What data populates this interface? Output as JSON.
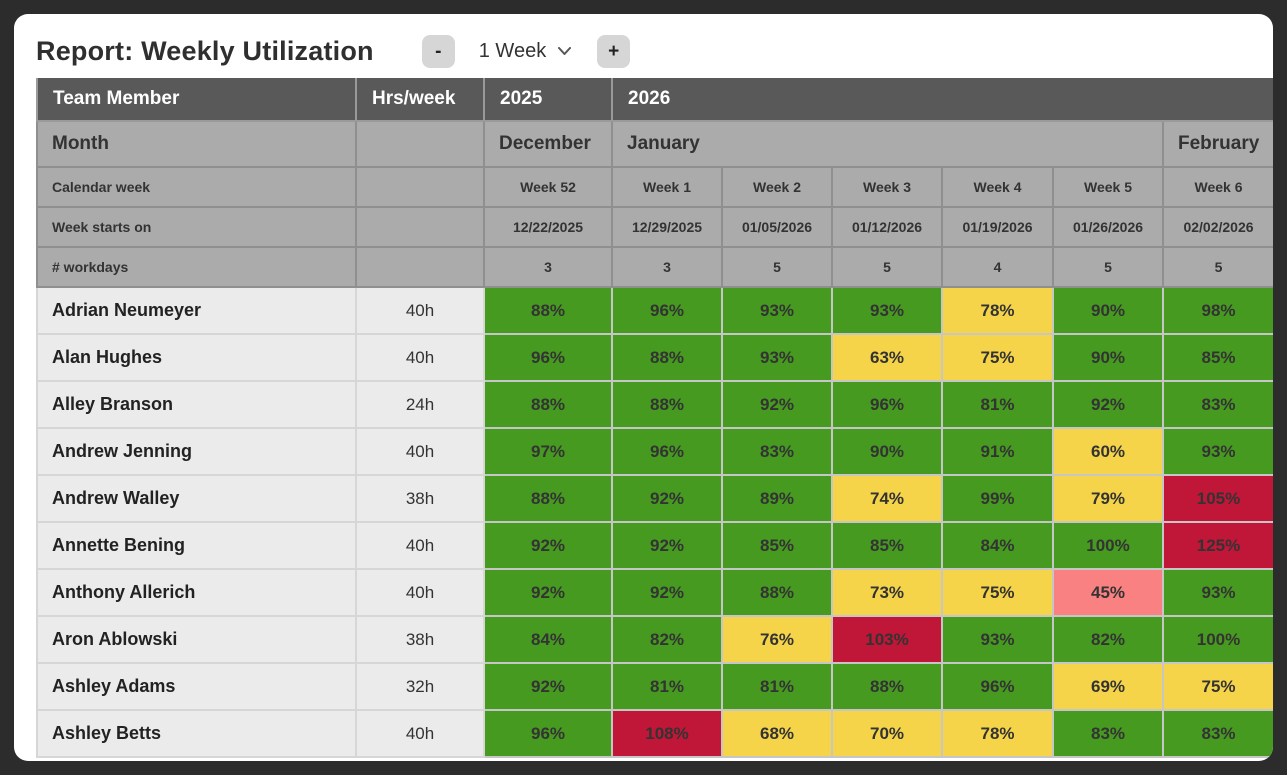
{
  "header": {
    "title": "Report: Weekly Utilization",
    "decrease_label": "-",
    "increase_label": "+",
    "interval_value": "1 Week"
  },
  "colors": {
    "green": "#469a20",
    "yellow": "#f6d44a",
    "red": "#c01637",
    "salmon": "#f98181",
    "header_dark": "#595959",
    "header_gray": "#ababab",
    "name_cell": "#ebebeb",
    "page_background": "#2c2c2c"
  },
  "table": {
    "year_row": {
      "team_member": "Team Member",
      "hrs_week": "Hrs/week",
      "year_2025": "2025",
      "year_2026": "2026"
    },
    "month_row": {
      "label": "Month",
      "months": [
        {
          "name": "December",
          "span": 1
        },
        {
          "name": "January",
          "span": 5
        },
        {
          "name": "February",
          "span": 1
        }
      ]
    },
    "calendar_week_row": {
      "label": "Calendar week",
      "weeks": [
        "Week 52",
        "Week 1",
        "Week 2",
        "Week 3",
        "Week 4",
        "Week 5",
        "Week 6"
      ]
    },
    "week_starts_row": {
      "label": "Week starts on",
      "dates": [
        "12/22/2025",
        "12/29/2025",
        "01/05/2026",
        "01/12/2026",
        "01/19/2026",
        "01/26/2026",
        "02/02/2026"
      ]
    },
    "workdays_row": {
      "label": "# workdays",
      "values": [
        "3",
        "3",
        "5",
        "5",
        "4",
        "5",
        "5"
      ]
    },
    "members": [
      {
        "name": "Adrian Neumeyer",
        "hours": "40h",
        "utilization": [
          {
            "value": "88%",
            "status": "green"
          },
          {
            "value": "96%",
            "status": "green"
          },
          {
            "value": "93%",
            "status": "green"
          },
          {
            "value": "93%",
            "status": "green"
          },
          {
            "value": "78%",
            "status": "yellow"
          },
          {
            "value": "90%",
            "status": "green"
          },
          {
            "value": "98%",
            "status": "green"
          }
        ]
      },
      {
        "name": "Alan Hughes",
        "hours": "40h",
        "utilization": [
          {
            "value": "96%",
            "status": "green"
          },
          {
            "value": "88%",
            "status": "green"
          },
          {
            "value": "93%",
            "status": "green"
          },
          {
            "value": "63%",
            "status": "yellow"
          },
          {
            "value": "75%",
            "status": "yellow"
          },
          {
            "value": "90%",
            "status": "green"
          },
          {
            "value": "85%",
            "status": "green"
          }
        ]
      },
      {
        "name": "Alley Branson",
        "hours": "24h",
        "utilization": [
          {
            "value": "88%",
            "status": "green"
          },
          {
            "value": "88%",
            "status": "green"
          },
          {
            "value": "92%",
            "status": "green"
          },
          {
            "value": "96%",
            "status": "green"
          },
          {
            "value": "81%",
            "status": "green"
          },
          {
            "value": "92%",
            "status": "green"
          },
          {
            "value": "83%",
            "status": "green"
          }
        ]
      },
      {
        "name": "Andrew Jenning",
        "hours": "40h",
        "utilization": [
          {
            "value": "97%",
            "status": "green"
          },
          {
            "value": "96%",
            "status": "green"
          },
          {
            "value": "83%",
            "status": "green"
          },
          {
            "value": "90%",
            "status": "green"
          },
          {
            "value": "91%",
            "status": "green"
          },
          {
            "value": "60%",
            "status": "yellow"
          },
          {
            "value": "93%",
            "status": "green"
          }
        ]
      },
      {
        "name": "Andrew Walley",
        "hours": "38h",
        "utilization": [
          {
            "value": "88%",
            "status": "green"
          },
          {
            "value": "92%",
            "status": "green"
          },
          {
            "value": "89%",
            "status": "green"
          },
          {
            "value": "74%",
            "status": "yellow"
          },
          {
            "value": "99%",
            "status": "green"
          },
          {
            "value": "79%",
            "status": "yellow"
          },
          {
            "value": "105%",
            "status": "red"
          }
        ]
      },
      {
        "name": "Annette Bening",
        "hours": "40h",
        "utilization": [
          {
            "value": "92%",
            "status": "green"
          },
          {
            "value": "92%",
            "status": "green"
          },
          {
            "value": "85%",
            "status": "green"
          },
          {
            "value": "85%",
            "status": "green"
          },
          {
            "value": "84%",
            "status": "green"
          },
          {
            "value": "100%",
            "status": "green"
          },
          {
            "value": "125%",
            "status": "red"
          }
        ]
      },
      {
        "name": "Anthony Allerich",
        "hours": "40h",
        "utilization": [
          {
            "value": "92%",
            "status": "green"
          },
          {
            "value": "92%",
            "status": "green"
          },
          {
            "value": "88%",
            "status": "green"
          },
          {
            "value": "73%",
            "status": "yellow"
          },
          {
            "value": "75%",
            "status": "yellow"
          },
          {
            "value": "45%",
            "status": "salmon"
          },
          {
            "value": "93%",
            "status": "green"
          }
        ]
      },
      {
        "name": "Aron Ablowski",
        "hours": "38h",
        "utilization": [
          {
            "value": "84%",
            "status": "green"
          },
          {
            "value": "82%",
            "status": "green"
          },
          {
            "value": "76%",
            "status": "yellow"
          },
          {
            "value": "103%",
            "status": "red"
          },
          {
            "value": "93%",
            "status": "green"
          },
          {
            "value": "82%",
            "status": "green"
          },
          {
            "value": "100%",
            "status": "green"
          }
        ]
      },
      {
        "name": "Ashley Adams",
        "hours": "32h",
        "utilization": [
          {
            "value": "92%",
            "status": "green"
          },
          {
            "value": "81%",
            "status": "green"
          },
          {
            "value": "81%",
            "status": "green"
          },
          {
            "value": "88%",
            "status": "green"
          },
          {
            "value": "96%",
            "status": "green"
          },
          {
            "value": "69%",
            "status": "yellow"
          },
          {
            "value": "75%",
            "status": "yellow"
          }
        ]
      },
      {
        "name": "Ashley Betts",
        "hours": "40h",
        "utilization": [
          {
            "value": "96%",
            "status": "green"
          },
          {
            "value": "108%",
            "status": "red"
          },
          {
            "value": "68%",
            "status": "yellow"
          },
          {
            "value": "70%",
            "status": "yellow"
          },
          {
            "value": "78%",
            "status": "yellow"
          },
          {
            "value": "83%",
            "status": "green"
          },
          {
            "value": "83%",
            "status": "green"
          }
        ]
      }
    ]
  }
}
